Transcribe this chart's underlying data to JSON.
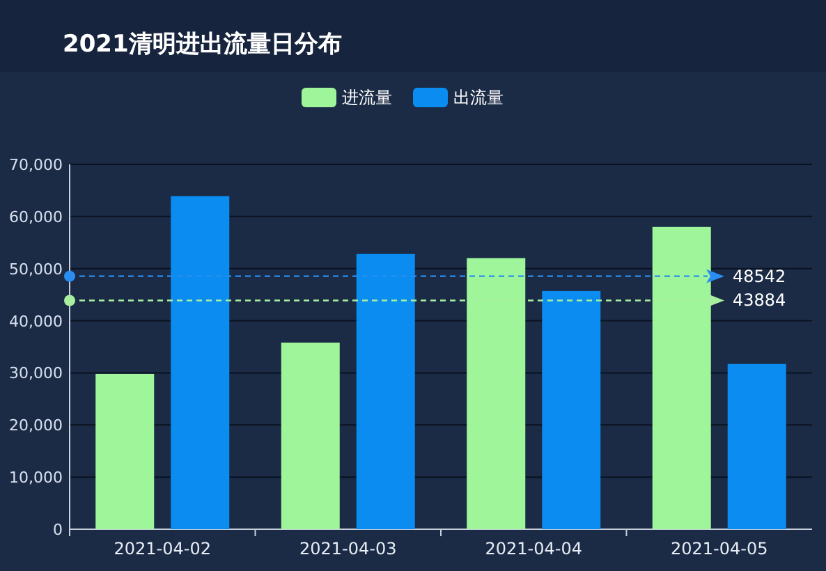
{
  "chart_data": {
    "type": "bar",
    "title": "2021清明进出流量日分布",
    "categories": [
      "2021-04-02",
      "2021-04-03",
      "2021-04-04",
      "2021-04-05"
    ],
    "series": [
      {
        "name": "进流量",
        "color": "#9ef59a",
        "values": [
          29800,
          35800,
          52000,
          58000
        ]
      },
      {
        "name": "出流量",
        "color": "#0a8cf0",
        "values": [
          63900,
          52800,
          45700,
          31700
        ]
      }
    ],
    "ylim": [
      0,
      70000
    ],
    "yticks": [
      {
        "value": 0,
        "label": "0"
      },
      {
        "value": 10000,
        "label": "10,000"
      },
      {
        "value": 20000,
        "label": "20,000"
      },
      {
        "value": 30000,
        "label": "30,000"
      },
      {
        "value": 40000,
        "label": "40,000"
      },
      {
        "value": 50000,
        "label": "50,000"
      },
      {
        "value": 60000,
        "label": "60,000"
      },
      {
        "value": 70000,
        "label": "70,000"
      }
    ],
    "ref_lines": [
      {
        "axis": "y",
        "value": 48542,
        "label": "48542",
        "color": "#2a8ef0",
        "line_style": "dashed"
      },
      {
        "axis": "y",
        "value": 43884,
        "label": "43884",
        "color": "#a8f0a0",
        "line_style": "dashed"
      }
    ],
    "grid": "y",
    "legend": "top"
  }
}
